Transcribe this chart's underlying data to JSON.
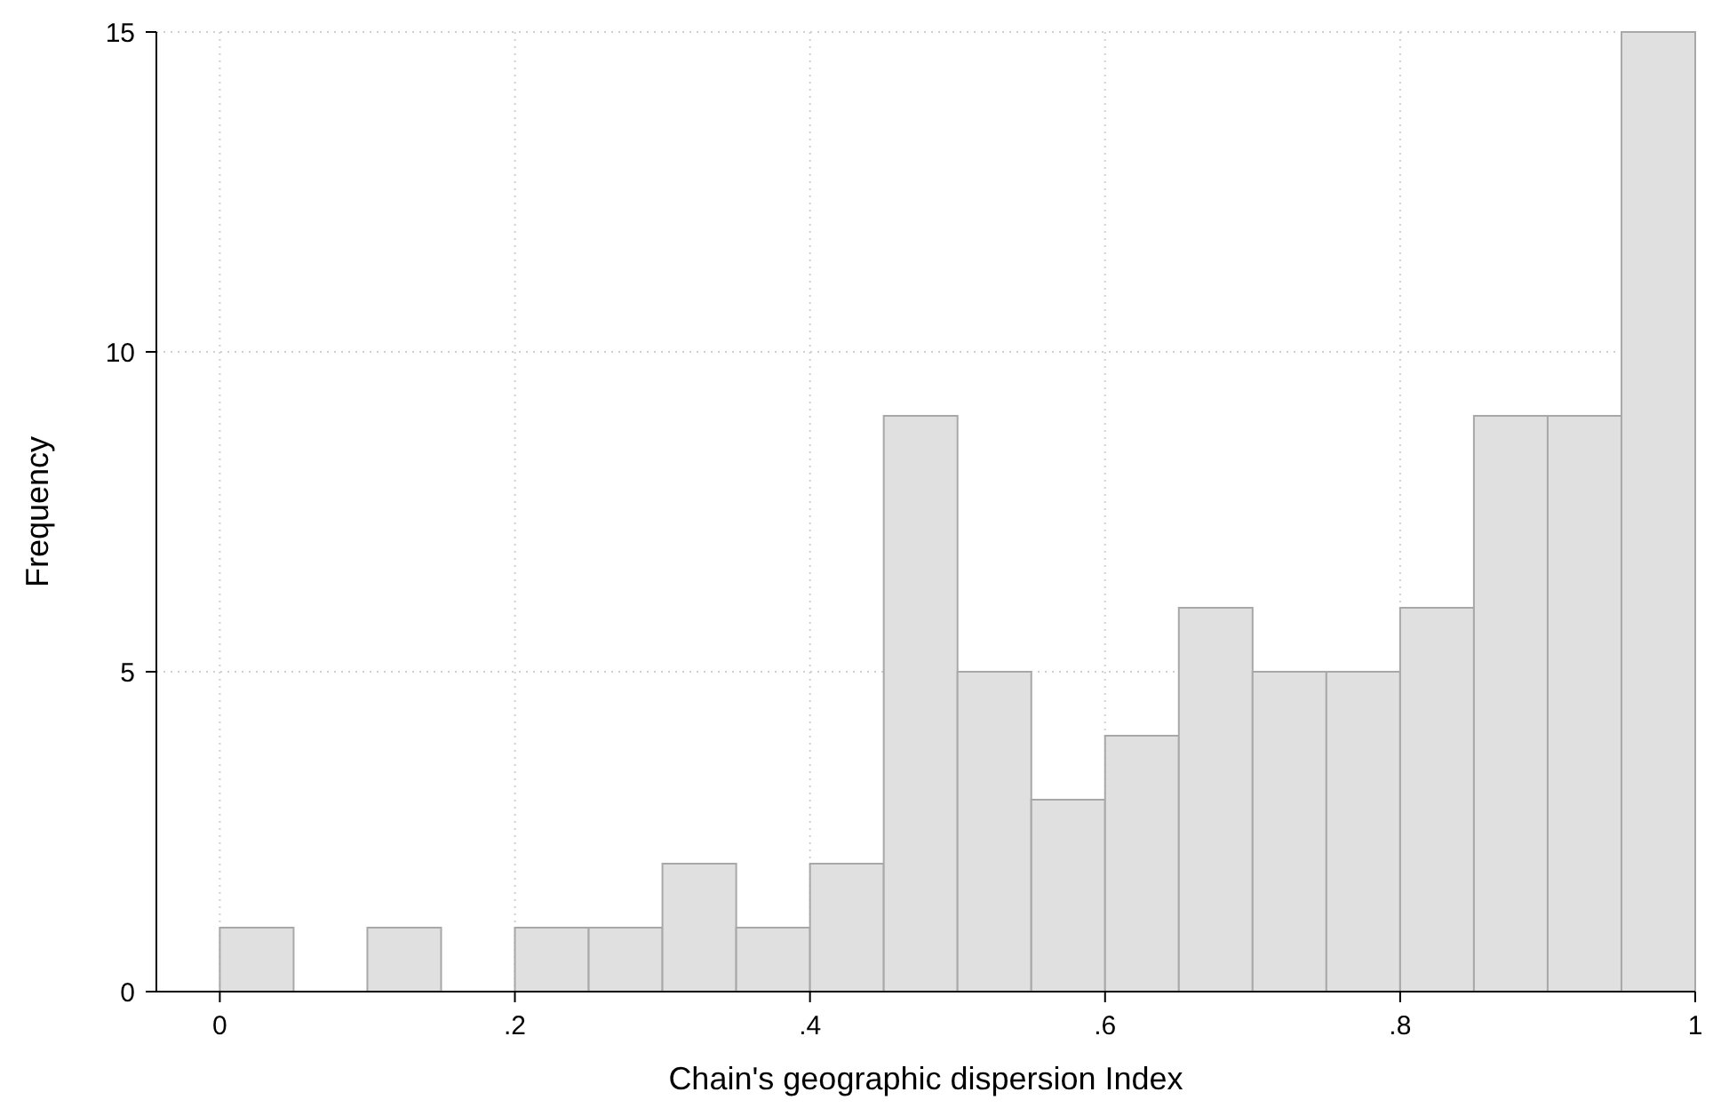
{
  "chart_data": {
    "type": "histogram",
    "xlabel": "Chain's geographic dispersion Index",
    "ylabel": "Frequency",
    "bins": [
      0,
      0.05,
      0.1,
      0.15,
      0.2,
      0.25,
      0.3,
      0.35,
      0.4,
      0.45,
      0.5,
      0.55,
      0.6,
      0.65,
      0.7,
      0.75,
      0.8,
      0.85,
      0.9,
      0.95,
      1
    ],
    "values": [
      1,
      0,
      1,
      0,
      1,
      1,
      2,
      1,
      2,
      9,
      5,
      3,
      4,
      6,
      5,
      5,
      6,
      9,
      9,
      15
    ],
    "color": "#e0e0e0",
    "xlim": [
      -0.043,
      1
    ],
    "xticks": [
      0,
      {
        "value": 0.2,
        "label": ".2"
      },
      {
        "value": 0.4,
        "label": ".4"
      },
      {
        "value": 0.6,
        "label": ".6"
      },
      {
        "value": 0.8,
        "label": ".8"
      },
      1
    ],
    "ylim": [
      0,
      15
    ],
    "yticks": [
      0,
      5,
      10,
      15
    ],
    "grid": true
  }
}
